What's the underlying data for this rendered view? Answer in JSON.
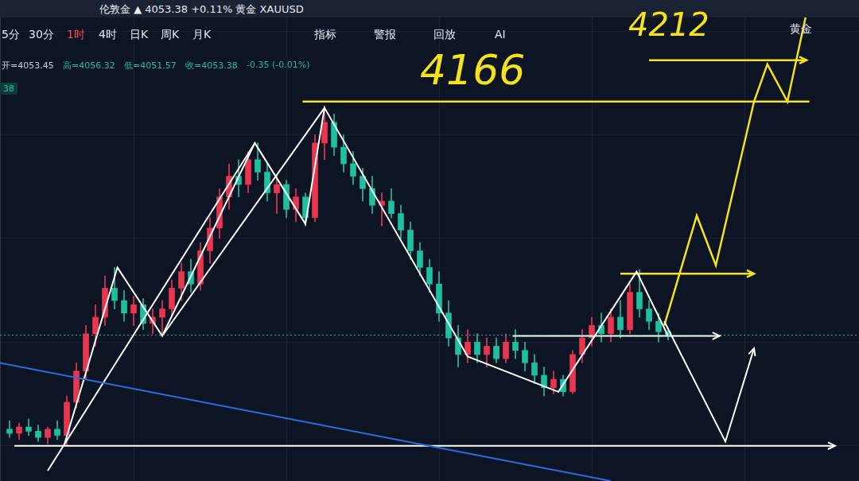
{
  "header": {
    "top_bar": "伦敦金 ▲ 4053.38 +0.11% 黄金 XAUUSD",
    "periods": [
      "5分",
      "30分",
      "1时",
      "4时",
      "日K",
      "周K",
      "月K"
    ],
    "active_period": "1时",
    "tools": [
      "指标",
      "警报",
      "回放",
      "AI"
    ],
    "symbol": "黄金",
    "ohlc_info": [
      "开=4053.45",
      "高=4056.32",
      "低=4051.57",
      "收=4053.38",
      "-0.35 (-0.01%)"
    ],
    "badge": "38"
  },
  "chart_data": {
    "type": "candlestick",
    "xlim": [
      -1,
      89
    ],
    "xticks": [
      5,
      21,
      37,
      53,
      69
    ],
    "ylim": [
      3983,
      4215
    ],
    "yticks": [
      4000,
      4050,
      4100,
      4150,
      4200
    ],
    "grid": true,
    "tick_labels": false,
    "annotations": [
      "4166",
      "4212"
    ],
    "series": [
      {
        "type": "candlestick",
        "color": "#e8364f",
        "values": [
          [
            1,
            4006,
            4011,
            4003,
            4009
          ],
          [
            4,
            4004,
            4009,
            4001,
            4008
          ],
          [
            6,
            4005,
            4024,
            4000,
            4021
          ],
          [
            7,
            4021,
            4040,
            4018,
            4036
          ],
          [
            8,
            4036,
            4058,
            4032,
            4054
          ],
          [
            9,
            4054,
            4068,
            4048,
            4062
          ],
          [
            10,
            4062,
            4082,
            4058,
            4076
          ],
          [
            13,
            4064,
            4072,
            4058,
            4068
          ],
          [
            15,
            4059,
            4066,
            4054,
            4062
          ],
          [
            16,
            4062,
            4070,
            4053,
            4066
          ],
          [
            17,
            4066,
            4080,
            4062,
            4076
          ],
          [
            18,
            4076,
            4088,
            4070,
            4084
          ],
          [
            20,
            4078,
            4098,
            4075,
            4094
          ],
          [
            21,
            4094,
            4110,
            4088,
            4105
          ],
          [
            22,
            4105,
            4124,
            4100,
            4120
          ],
          [
            23,
            4120,
            4136,
            4114,
            4130
          ],
          [
            25,
            4126,
            4142,
            4122,
            4138
          ],
          [
            28,
            4122,
            4130,
            4112,
            4126
          ],
          [
            30,
            4114,
            4124,
            4108,
            4120
          ],
          [
            32,
            4110,
            4150,
            4108,
            4146
          ],
          [
            33,
            4146,
            4164,
            4138,
            4156
          ],
          [
            39,
            4116,
            4122,
            4106,
            4118
          ],
          [
            48,
            4044,
            4056,
            4040,
            4050
          ],
          [
            50,
            4044,
            4052,
            4038,
            4048
          ],
          [
            52,
            4042,
            4054,
            4040,
            4050
          ],
          [
            57,
            4028,
            4036,
            4025,
            4032
          ],
          [
            59,
            4026,
            4046,
            4025,
            4044
          ],
          [
            60,
            4044,
            4056,
            4040,
            4052
          ],
          [
            61,
            4052,
            4062,
            4048,
            4058
          ],
          [
            63,
            4054,
            4066,
            4050,
            4062
          ],
          [
            65,
            4056,
            4078,
            4054,
            4074
          ]
        ]
      },
      {
        "type": "candlestick",
        "color": "#1fbf9f",
        "values": [
          [
            0,
            4008,
            4012,
            4004,
            4006
          ],
          [
            2,
            4009,
            4013,
            4005,
            4007
          ],
          [
            3,
            4007,
            4010,
            4002,
            4004
          ],
          [
            5,
            4008,
            4012,
            4003,
            4005
          ],
          [
            11,
            4076,
            4086,
            4066,
            4070
          ],
          [
            12,
            4070,
            4075,
            4060,
            4064
          ],
          [
            14,
            4068,
            4071,
            4056,
            4059
          ],
          [
            19,
            4084,
            4090,
            4074,
            4078
          ],
          [
            24,
            4130,
            4138,
            4120,
            4126
          ],
          [
            26,
            4138,
            4146,
            4128,
            4132
          ],
          [
            27,
            4132,
            4136,
            4118,
            4122
          ],
          [
            29,
            4126,
            4128,
            4110,
            4114
          ],
          [
            31,
            4120,
            4122,
            4106,
            4110
          ],
          [
            34,
            4156,
            4160,
            4140,
            4144
          ],
          [
            35,
            4144,
            4150,
            4132,
            4136
          ],
          [
            36,
            4136,
            4142,
            4126,
            4130
          ],
          [
            37,
            4130,
            4134,
            4118,
            4124
          ],
          [
            38,
            4124,
            4130,
            4112,
            4116
          ],
          [
            40,
            4118,
            4124,
            4110,
            4112
          ],
          [
            41,
            4112,
            4116,
            4100,
            4104
          ],
          [
            42,
            4104,
            4108,
            4090,
            4094
          ],
          [
            43,
            4094,
            4098,
            4082,
            4086
          ],
          [
            44,
            4086,
            4090,
            4074,
            4078
          ],
          [
            45,
            4078,
            4084,
            4060,
            4064
          ],
          [
            46,
            4064,
            4070,
            4048,
            4052
          ],
          [
            47,
            4052,
            4058,
            4038,
            4044
          ],
          [
            49,
            4050,
            4054,
            4040,
            4044
          ],
          [
            51,
            4048,
            4052,
            4040,
            4042
          ],
          [
            53,
            4050,
            4056,
            4042,
            4046
          ],
          [
            54,
            4046,
            4050,
            4036,
            4040
          ],
          [
            55,
            4040,
            4044,
            4030,
            4034
          ],
          [
            56,
            4034,
            4038,
            4024,
            4028
          ],
          [
            58,
            4032,
            4034,
            4024,
            4026
          ],
          [
            62,
            4058,
            4064,
            4050,
            4054
          ],
          [
            64,
            4062,
            4070,
            4052,
            4056
          ],
          [
            66,
            4074,
            4085,
            4062,
            4066
          ],
          [
            67,
            4066,
            4070,
            4056,
            4060
          ],
          [
            68,
            4060,
            4064,
            4050,
            4055
          ],
          [
            69,
            4055,
            4056,
            4051,
            4053
          ]
        ]
      },
      {
        "type": "line",
        "color": "#1fa89a",
        "line_style": "dotted",
        "values": [
          [
            -1,
            4053.38
          ],
          [
            89,
            4053.38
          ]
        ]
      },
      {
        "type": "line",
        "color": "#2a6be0",
        "line_style": "solid",
        "values": [
          [
            -1,
            4040
          ],
          [
            63,
            3983
          ]
        ]
      },
      {
        "type": "line",
        "color": "#ffffff",
        "line_style": "solid",
        "marker": "arrow",
        "values": [
          [
            0.5,
            4000
          ],
          [
            86.5,
            4000
          ]
        ]
      },
      {
        "type": "line",
        "color": "#ffffff",
        "line_style": "solid",
        "values": [
          [
            5.7,
            4000
          ],
          [
            11.3,
            4086
          ],
          [
            16,
            4053
          ],
          [
            25.7,
            4146
          ],
          [
            31,
            4107
          ],
          [
            33,
            4163
          ],
          [
            48,
            4043
          ],
          [
            57.5,
            4026
          ],
          [
            65.7,
            4084
          ],
          [
            69,
            4053
          ]
        ]
      },
      {
        "type": "line",
        "color": "#ffffff",
        "line_style": "solid",
        "values": [
          [
            4,
            3988
          ],
          [
            25.7,
            4146
          ]
        ]
      },
      {
        "type": "line",
        "color": "#ffffff",
        "line_style": "solid",
        "values": [
          [
            16,
            4053
          ],
          [
            33,
            4163
          ]
        ]
      },
      {
        "type": "line",
        "color": "#ffffff",
        "line_style": "solid",
        "marker": "arrow",
        "values": [
          [
            52.7,
            4053
          ],
          [
            74.4,
            4053
          ]
        ]
      },
      {
        "type": "line",
        "color": "#ffffff",
        "line_style": "solid",
        "marker": "arrow",
        "values": [
          [
            68.6,
            4060
          ],
          [
            75,
            4002
          ],
          [
            78,
            4047
          ]
        ]
      },
      {
        "type": "line",
        "color": "#f5e31a",
        "line_style": "solid",
        "values": [
          [
            30.7,
            4166
          ],
          [
            83.8,
            4166
          ]
        ]
      },
      {
        "type": "line",
        "color": "#f5e31a",
        "line_style": "solid",
        "marker": "arrow",
        "values": [
          [
            64,
            4083
          ],
          [
            78,
            4083
          ]
        ]
      },
      {
        "type": "line",
        "color": "#f5e31a",
        "line_style": "solid",
        "marker": "arrow",
        "values": [
          [
            67,
            4186
          ],
          [
            83.5,
            4186
          ]
        ]
      },
      {
        "type": "line",
        "color": "#f5e31a",
        "line_style": "solid",
        "marker": "arrow",
        "values": [
          [
            68.6,
            4058
          ],
          [
            72,
            4111
          ],
          [
            74,
            4087
          ],
          [
            78,
            4166
          ],
          [
            79.4,
            4184
          ],
          [
            81.5,
            4166
          ],
          [
            83.6,
            4211
          ]
        ]
      }
    ]
  }
}
